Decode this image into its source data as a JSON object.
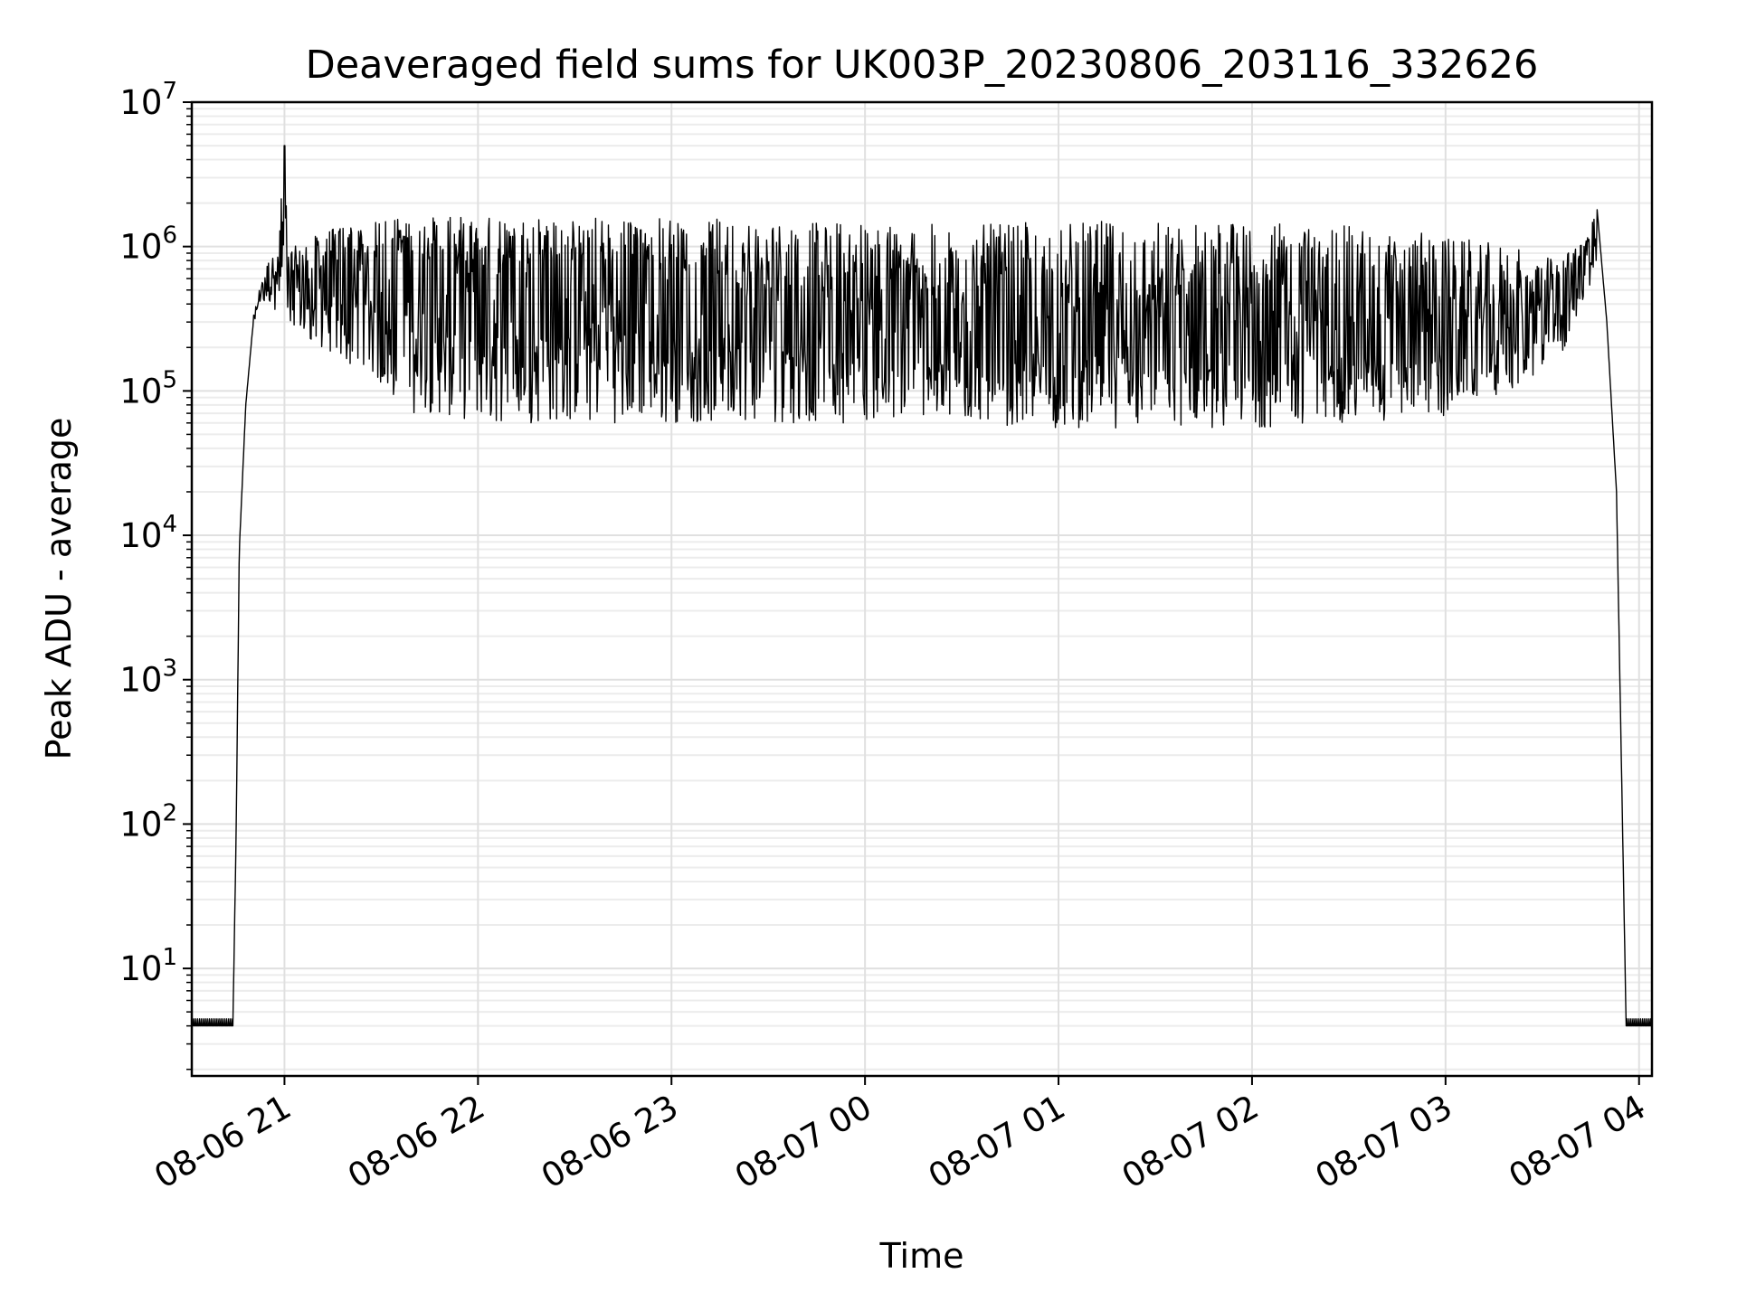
{
  "chart_data": {
    "type": "line",
    "title": "Deaveraged field sums for UK003P_20230806_203116_332626",
    "xlabel": "Time",
    "ylabel": "Peak ADU - average",
    "yscale": "log",
    "ylim": [
      1.8,
      10000000
    ],
    "xlim": [
      "2023-08-06T20:31:16",
      "2023-08-07T04:04:00"
    ],
    "x_ticks": [
      "2023-08-06T21:00",
      "2023-08-06T22:00",
      "2023-08-06T23:00",
      "2023-08-07T00:00",
      "2023-08-07T01:00",
      "2023-08-07T02:00",
      "2023-08-07T03:00",
      "2023-08-07T04:00"
    ],
    "x_tick_labels": [
      "08-06 21",
      "08-06 22",
      "08-06 23",
      "08-07 00",
      "08-07 01",
      "08-07 02",
      "08-07 03",
      "08-07 04"
    ],
    "y_ticks": [
      {
        "base": "10",
        "exp": "1",
        "value": 10
      },
      {
        "base": "10",
        "exp": "2",
        "value": 100
      },
      {
        "base": "10",
        "exp": "3",
        "value": 1000
      },
      {
        "base": "10",
        "exp": "4",
        "value": 10000
      },
      {
        "base": "10",
        "exp": "5",
        "value": 100000
      },
      {
        "base": "10",
        "exp": "6",
        "value": 1000000
      },
      {
        "base": "10",
        "exp": "7",
        "value": 10000000
      }
    ],
    "grid": true,
    "series": [
      {
        "color": "#000000",
        "x": [
          "2023-08-06T20:31",
          "2023-08-06T20:44",
          "2023-08-06T20:45",
          "2023-08-06T20:46",
          "2023-08-06T20:48",
          "2023-08-06T20:50",
          "2023-08-06T20:52",
          "2023-08-06T20:55",
          "2023-08-06T20:58",
          "2023-08-06T21:00",
          "2023-08-06T21:01",
          "2023-08-06T21:03",
          "2023-08-06T21:10",
          "2023-08-06T21:20",
          "2023-08-06T21:40",
          "2023-08-06T22:00",
          "2023-08-06T22:30",
          "2023-08-06T23:00",
          "2023-08-06T23:30",
          "2023-08-07T00:00",
          "2023-08-07T00:30",
          "2023-08-07T01:00",
          "2023-08-07T01:30",
          "2023-08-07T02:00",
          "2023-08-07T02:30",
          "2023-08-07T03:00",
          "2023-08-07T03:20",
          "2023-08-07T03:35",
          "2023-08-07T03:44",
          "2023-08-07T03:47",
          "2023-08-07T03:50",
          "2023-08-07T03:53",
          "2023-08-07T03:56",
          "2023-08-07T04:04"
        ],
        "y": [
          4,
          4,
          80,
          8000,
          80000,
          250000,
          450000,
          600000,
          600000,
          5000000,
          600000,
          500000,
          650000,
          900000,
          900000,
          700000,
          800000,
          700000,
          500000,
          400000,
          350000,
          300000,
          300000,
          300000,
          300000,
          300000,
          300000,
          500000,
          1000000,
          1800000,
          300000,
          20000,
          4,
          4
        ],
        "envelope_max": [
          null,
          null,
          null,
          null,
          null,
          300000,
          500000,
          800000,
          900000,
          5000000,
          1000000,
          1000000,
          1200000,
          1500000,
          1600000,
          1600000,
          1700000,
          1600000,
          1500000,
          1500000,
          1400000,
          1500000,
          1500000,
          1500000,
          1400000,
          1200000,
          1000000,
          800000,
          1200000,
          1800000,
          null,
          null,
          null,
          null
        ],
        "envelope_min": [
          null,
          null,
          null,
          null,
          null,
          250000,
          400000,
          400000,
          350000,
          500000,
          300000,
          250000,
          200000,
          150000,
          70000,
          60000,
          60000,
          60000,
          60000,
          60000,
          60000,
          55000,
          55000,
          55000,
          60000,
          65000,
          100000,
          150000,
          500000,
          700000,
          null,
          null,
          null,
          null
        ]
      }
    ]
  }
}
